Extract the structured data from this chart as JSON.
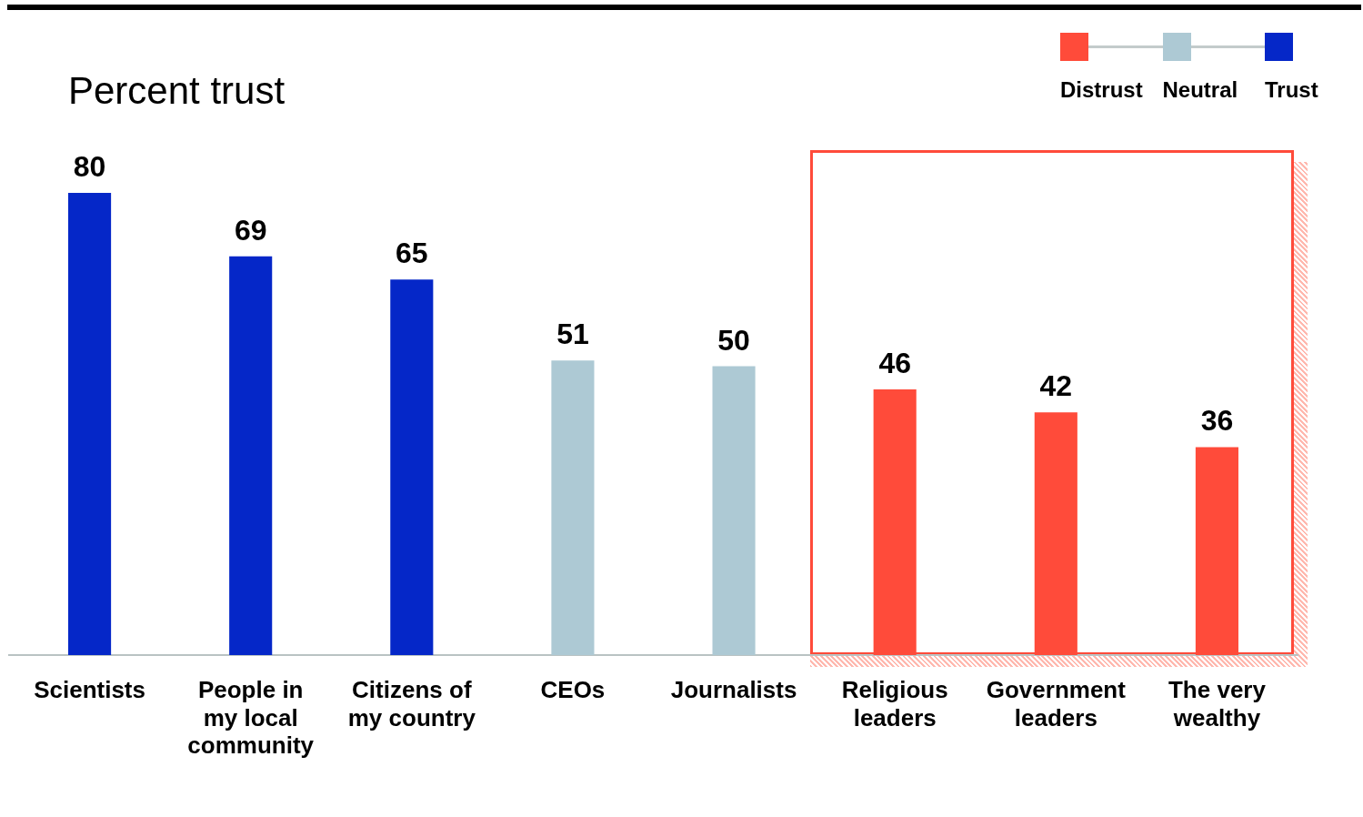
{
  "chart_data": {
    "type": "bar",
    "title": "Percent trust",
    "categories": [
      "Scientists",
      "People in my local community",
      "Citizens of my country",
      "CEOs",
      "Journalists",
      "Religious leaders",
      "Government leaders",
      "The very wealthy"
    ],
    "series": [
      {
        "name": "Distrust",
        "color": "#ff4b3a",
        "values": [
          null,
          null,
          null,
          null,
          null,
          46,
          42,
          36
        ]
      },
      {
        "name": "Neutral",
        "color": "#adc9d4",
        "values": [
          null,
          null,
          null,
          51,
          50,
          null,
          null,
          null
        ]
      },
      {
        "name": "Trust",
        "color": "#0527c8",
        "values": [
          80,
          69,
          65,
          null,
          null,
          null,
          null,
          null
        ]
      }
    ],
    "stacked": true,
    "data_labels": true,
    "legend": "top right",
    "grid": false,
    "tick_labels": "x"
  }
}
